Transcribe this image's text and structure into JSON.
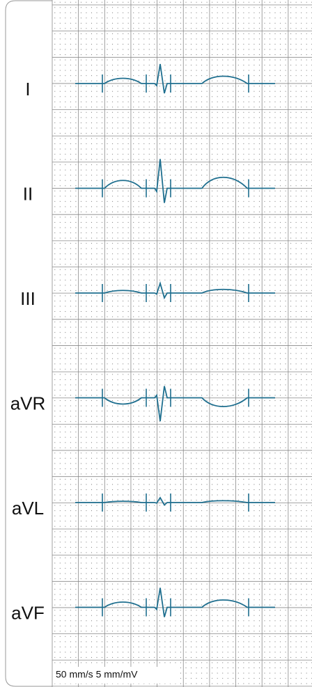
{
  "leads": [
    {
      "label": "I"
    },
    {
      "label": "II"
    },
    {
      "label": "III"
    },
    {
      "label": "aVR"
    },
    {
      "label": "aVL"
    },
    {
      "label": "aVF"
    }
  ],
  "footer": "50 mm/s 5 mm/mV"
}
